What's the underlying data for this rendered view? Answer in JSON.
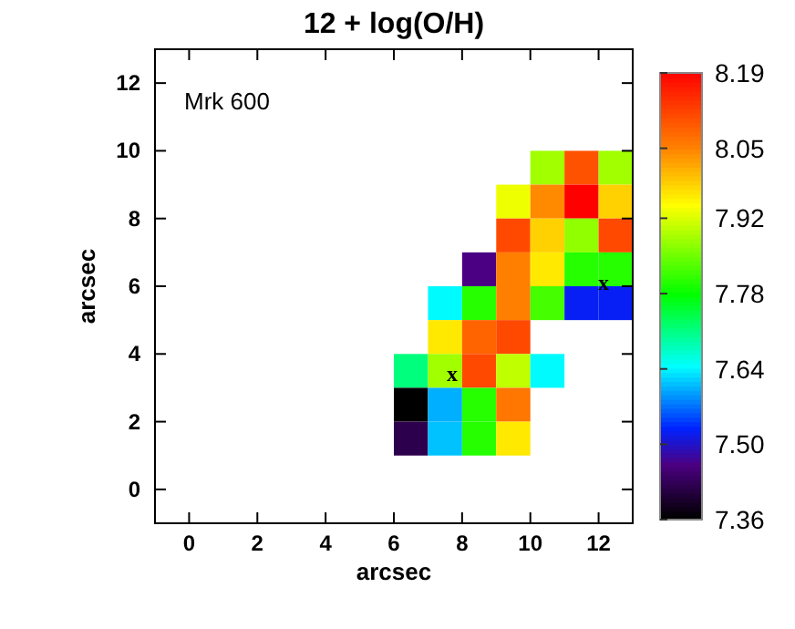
{
  "chart_data": {
    "type": "heatmap",
    "title": "12 + log(O/H)",
    "xlabel": "arcsec",
    "ylabel": "arcsec",
    "x": [
      6.5,
      7.5,
      8.5,
      9.5,
      10.5,
      11.5,
      12.5
    ],
    "y": [
      9.5,
      8.5,
      7.5,
      6.5,
      5.5,
      4.5,
      3.5,
      2.5,
      1.5
    ],
    "cells": [
      [
        null,
        null,
        null,
        null,
        7.88,
        8.1,
        7.88
      ],
      [
        null,
        null,
        null,
        7.93,
        8.04,
        8.19,
        7.98
      ],
      [
        null,
        null,
        null,
        8.11,
        7.98,
        7.87,
        8.11
      ],
      [
        null,
        null,
        7.46,
        8.05,
        7.96,
        7.8,
        7.8
      ],
      [
        null,
        7.64,
        7.8,
        8.05,
        7.82,
        7.52,
        7.52
      ],
      [
        null,
        7.96,
        8.08,
        8.11,
        null,
        null,
        null
      ],
      [
        7.71,
        7.88,
        8.11,
        7.9,
        7.64,
        null,
        null
      ],
      [
        7.36,
        7.6,
        7.8,
        8.06,
        null,
        null,
        null
      ],
      [
        7.42,
        7.61,
        7.8,
        7.96,
        null,
        null,
        null
      ]
    ],
    "xlim": [
      -1,
      13
    ],
    "ylim": [
      -1,
      13
    ],
    "xticks": [
      0,
      2,
      4,
      6,
      8,
      10,
      12
    ],
    "yticks": [
      0,
      2,
      4,
      6,
      8,
      10,
      12
    ],
    "clim": [
      7.36,
      8.19
    ],
    "cticks": [
      7.36,
      {
        "value": 7.5,
        "label": "7.50"
      },
      7.64,
      7.78,
      7.92,
      8.05,
      8.19
    ],
    "annotations": [
      "Mrk 600",
      "x",
      "x"
    ]
  }
}
